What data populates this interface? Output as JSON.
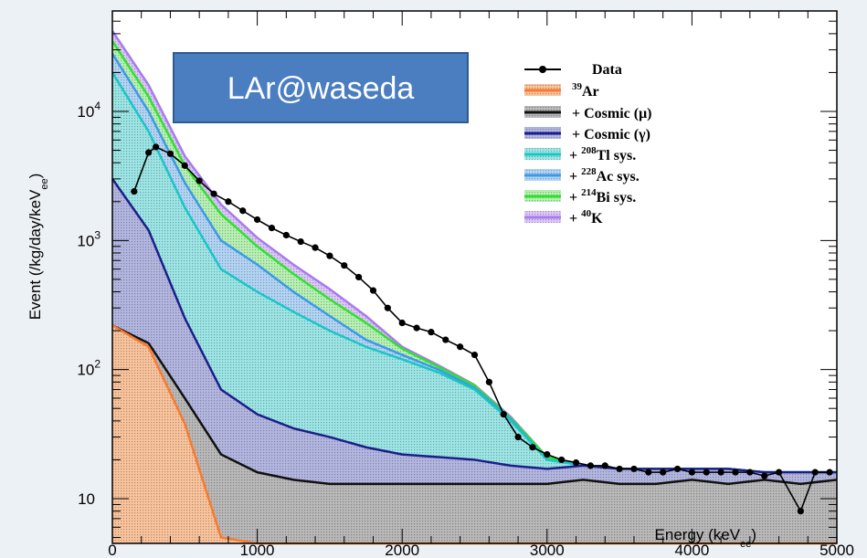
{
  "chart_data": {
    "type": "area",
    "title": "",
    "xlabel": "Energy (keV",
    "xlabel_sub": "ee",
    "xlabel_close": ")",
    "ylabel": "Event (/kg/day/keV",
    "ylabel_sub": "ee",
    "ylabel_close": ")",
    "x_scale": "linear",
    "y_scale": "log",
    "xlim": [
      0,
      5000
    ],
    "ylim": [
      4.5,
      60000
    ],
    "x_ticks": [
      {
        "value": 0,
        "label": "0"
      },
      {
        "value": 1000,
        "label": "1000"
      },
      {
        "value": 2000,
        "label": "2000"
      },
      {
        "value": 3000,
        "label": "3000"
      },
      {
        "value": 4000,
        "label": "4000"
      },
      {
        "value": 5000,
        "label": "5000"
      }
    ],
    "y_ticks": [
      {
        "value": 10,
        "label": "10"
      },
      {
        "value": 100,
        "label": "10",
        "sup": "2"
      },
      {
        "value": 1000,
        "label": "10",
        "sup": "3"
      },
      {
        "value": 10000,
        "label": "10",
        "sup": "4"
      }
    ],
    "grid": false,
    "legend_position": "top-right",
    "x": [
      0,
      250,
      500,
      750,
      1000,
      1250,
      1500,
      1750,
      2000,
      2250,
      2500,
      2750,
      3000,
      3250,
      3500,
      3750,
      4000,
      4250,
      4500,
      4750,
      5000
    ],
    "series": [
      {
        "label_main": "Ar",
        "label_sup": "39",
        "prefix": "",
        "color": "#f97a2e",
        "fill": "#f9c39c",
        "values": [
          220,
          150,
          38,
          5,
          4.5,
          4.5,
          4.5,
          4.5,
          4.5,
          4.5,
          4.5,
          4.5,
          4.5,
          4.5,
          4.5,
          4.5,
          4.5,
          4.5,
          4.5,
          4.5,
          4.5
        ]
      },
      {
        "label_main": "+ Cosmic (μ)",
        "label_sup": "",
        "prefix": "",
        "color": "#111111",
        "fill": "#b9b9b9",
        "values": [
          220,
          160,
          60,
          22,
          16,
          14,
          13,
          13,
          13,
          13,
          13,
          13,
          13,
          14,
          13,
          13,
          14,
          13,
          14,
          13,
          14
        ]
      },
      {
        "label_main": "+ Cosmic (γ)",
        "label_sup": "",
        "prefix": "",
        "color": "#1c1f8a",
        "fill": "#b3b6e0",
        "values": [
          3000,
          1200,
          250,
          70,
          45,
          35,
          30,
          25,
          22,
          21,
          20,
          18,
          17,
          18,
          17,
          17,
          17,
          17,
          16,
          16,
          16
        ]
      },
      {
        "label_main": "Tl sys.",
        "label_sup": "208",
        "prefix": "+ ",
        "color": "#19c6c6",
        "fill": "#9de6e6",
        "values": [
          20000,
          7000,
          1800,
          600,
          400,
          280,
          200,
          150,
          120,
          95,
          70,
          40,
          20,
          18,
          17,
          17,
          17,
          17,
          16,
          16,
          16
        ]
      },
      {
        "label_main": "Ac sys.",
        "label_sup": "228",
        "prefix": "+ ",
        "color": "#3a9ae8",
        "fill": "#b3d5f5",
        "values": [
          28000,
          10000,
          2800,
          1000,
          650,
          400,
          260,
          170,
          130,
          100,
          72,
          41,
          20,
          18,
          17,
          17,
          17,
          17,
          16,
          16,
          16
        ]
      },
      {
        "label_main": "Bi sys.",
        "label_sup": "214",
        "prefix": "+ ",
        "color": "#2ee22e",
        "fill": "#b8f1b4",
        "values": [
          35000,
          13000,
          3800,
          1600,
          900,
          550,
          350,
          230,
          145,
          105,
          75,
          42,
          21,
          18,
          17,
          17,
          17,
          17,
          16,
          16,
          16
        ]
      },
      {
        "label_main": "K",
        "label_sup": "40",
        "prefix": "+ ",
        "color": "#a87af0",
        "fill": "#dcc8f7",
        "values": [
          42000,
          16000,
          4500,
          1900,
          1050,
          650,
          420,
          260,
          150,
          108,
          76,
          43,
          21,
          18,
          17,
          17,
          17,
          17,
          16,
          16,
          16
        ]
      }
    ],
    "data": {
      "label": "Data",
      "x": [
        150,
        250,
        300,
        400,
        500,
        600,
        700,
        800,
        900,
        1000,
        1100,
        1200,
        1300,
        1400,
        1500,
        1600,
        1700,
        1800,
        1900,
        2000,
        2100,
        2200,
        2300,
        2400,
        2500,
        2600,
        2700,
        2800,
        2900,
        3000,
        3100,
        3200,
        3300,
        3400,
        3500,
        3600,
        3700,
        3800,
        3900,
        4000,
        4100,
        4200,
        4300,
        4400,
        4500,
        4600,
        4750,
        4850,
        4950
      ],
      "y": [
        2400,
        4800,
        5300,
        4700,
        3800,
        2900,
        2300,
        2000,
        1700,
        1450,
        1250,
        1100,
        980,
        880,
        760,
        640,
        520,
        410,
        300,
        230,
        210,
        195,
        170,
        150,
        130,
        80,
        45,
        30,
        25,
        22,
        20,
        19,
        18,
        18,
        17,
        17,
        16,
        16,
        17,
        16,
        16,
        16,
        16,
        16,
        15,
        16,
        8,
        16,
        16
      ]
    },
    "annotation": "LAr@waseda"
  }
}
